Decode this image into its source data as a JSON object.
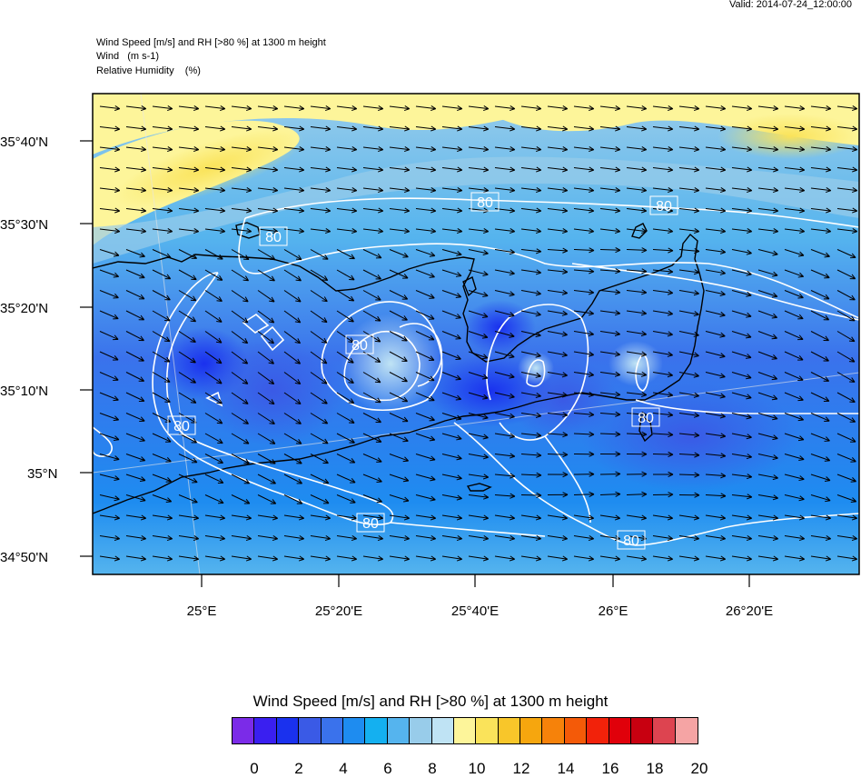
{
  "valid_time": "Valid: 2014-07-24_12:00:00",
  "header_lines": {
    "line1": "Wind Speed [m/s] and RH [>80 %] at 1300 m height",
    "line2": "Wind   (m s-1)",
    "line3": "Relative Humidity    (%)"
  },
  "lat_labels": [
    "35°40'N",
    "35°30'N",
    "35°20'N",
    "35°10'N",
    "35°N",
    "34°50'N"
  ],
  "lon_labels": [
    "25°E",
    "25°20'E",
    "25°40'E",
    "26°E",
    "26°20'E"
  ],
  "contour_label": "80",
  "legend": {
    "title": "Wind Speed [m/s] and RH [>80 %] at 1300 m height",
    "tick_labels": [
      "0",
      "2",
      "4",
      "6",
      "8",
      "10",
      "12",
      "14",
      "16",
      "18",
      "20"
    ],
    "colors": [
      "#7b2be8",
      "#3a1ff0",
      "#1a31ee",
      "#3a5ae6",
      "#3a72ec",
      "#1e8cf0",
      "#14b0f0",
      "#55b4ee",
      "#98ccea",
      "#bfe3f4",
      "#fdf59a",
      "#fae35a",
      "#f8c62a",
      "#f6a60e",
      "#f6820a",
      "#f45a08",
      "#f2220a",
      "#e0000a",
      "#c80010",
      "#dd4450",
      "#f5a4a4"
    ]
  },
  "colors": {
    "coastline": "#000000",
    "contour": "#ffffff"
  }
}
